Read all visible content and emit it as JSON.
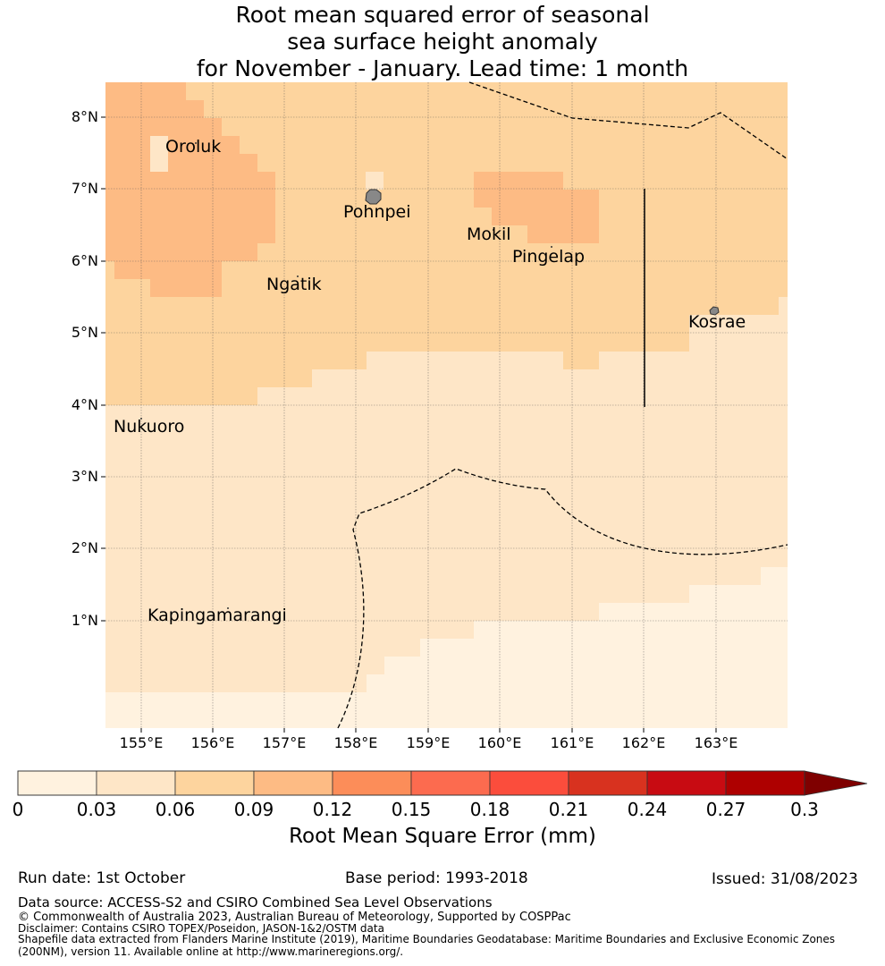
{
  "title": {
    "line1": "Root mean squared error of seasonal",
    "line2": "sea surface height anomaly",
    "line3": "for November - January. Lead time: 1 month"
  },
  "map": {
    "lat_ticks": [
      "8°N",
      "7°N",
      "6°N",
      "5°N",
      "4°N",
      "3°N",
      "2°N",
      "1°N"
    ],
    "lon_ticks": [
      "155°E",
      "156°E",
      "157°E",
      "158°E",
      "159°E",
      "160°E",
      "161°E",
      "162°E",
      "163°E"
    ],
    "places": [
      {
        "name": "Oroluk"
      },
      {
        "name": "Pohnpei"
      },
      {
        "name": "Mokil"
      },
      {
        "name": "Pingelap"
      },
      {
        "name": "Ngatik"
      },
      {
        "name": "Kosrae"
      },
      {
        "name": "Nukuoro"
      },
      {
        "name": "Kapingamarangi"
      }
    ],
    "fill_colors": [
      "#fff2df",
      "#fee6c7",
      "#fdd49e",
      "#fdbb84"
    ]
  },
  "colorbar": {
    "title": "Root Mean Square Error (mm)",
    "ticks": [
      "0",
      "0.03",
      "0.06",
      "0.09",
      "0.12",
      "0.15",
      "0.18",
      "0.21",
      "0.24",
      "0.27",
      "0.3"
    ],
    "colors": [
      "#fff2df",
      "#fee6c7",
      "#fdd49e",
      "#fdbb84",
      "#fc8d59",
      "#fc6b4f",
      "#fb4d3c",
      "#d8321f",
      "#c80b12",
      "#ae0000"
    ],
    "extend_color": "#7f0000"
  },
  "footer": {
    "run_date": "Run date: 1st October",
    "base_period": "Base period: 1993-2018",
    "issued": "Issued: 31/08/2023",
    "data_source": "Data source: ACCESS-S2 and CSIRO Combined Sea Level Observations",
    "copyright": "© Commonwealth of Australia 2023, Australian Bureau of Meteorology, Supported by COSPPac",
    "disclaimer": "Disclaimer: Contains CSIRO TOPEX/Poseidon, JASON-1&2/OSTM data",
    "shapefile1": "Shapefile data extracted from Flanders Marine Institute (2019), Maritime Boundaries Geodatabase: Maritime Boundaries and Exclusive Economic Zones",
    "shapefile2": "(200NM), version 11. Available online at http://www.marineregions.org/."
  }
}
